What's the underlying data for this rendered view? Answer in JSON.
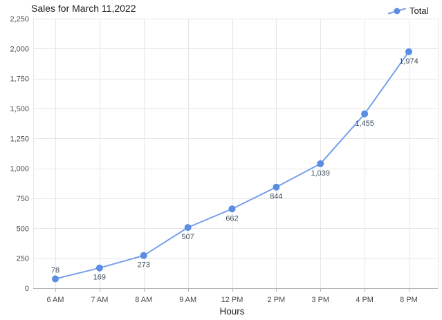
{
  "title": "Sales for March 11,2022",
  "legend": {
    "label": "Total"
  },
  "x_axis_title": "Hours",
  "colors": {
    "line": "#74a0ed",
    "marker": "#5b8de4",
    "grid": "#e6e6e6",
    "axis": "#b0b0b0",
    "tick_label": "#4a4a4a",
    "data_label": "#3e4e5e",
    "title_text": "#1a1a1a"
  },
  "chart_data": {
    "type": "line",
    "title": "Sales for March 11,2022",
    "categories": [
      "6 AM",
      "7 AM",
      "8 AM",
      "9 AM",
      "12 PM",
      "2 PM",
      "3 PM",
      "4 PM",
      "8 PM"
    ],
    "series": [
      {
        "name": "Total",
        "values": [
          78,
          169,
          273,
          507,
          662,
          844,
          1039,
          1455,
          1974
        ]
      }
    ],
    "data_labels": [
      "78",
      "169",
      "273",
      "507",
      "662",
      "844",
      "1,039",
      "1,455",
      "1,974"
    ],
    "xlabel": "Hours",
    "ylabel": "",
    "ylim": [
      0,
      2250
    ],
    "ytick_step": 250,
    "grid": true,
    "legend_position": "top-right"
  }
}
